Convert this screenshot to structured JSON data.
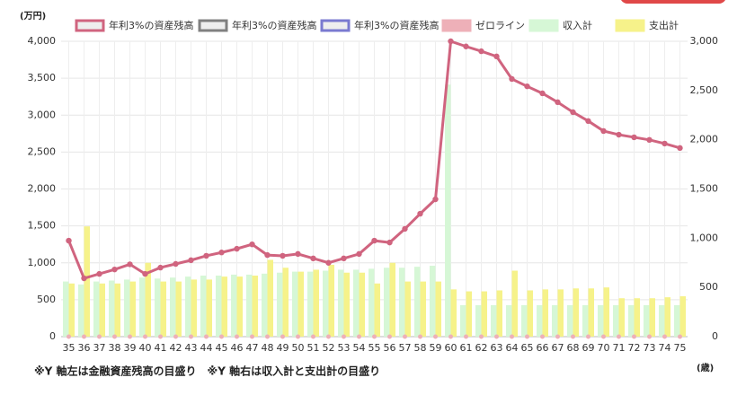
{
  "chart_data": {
    "type": "combo",
    "y_unit": "(万円)",
    "x_unit": "(歳)",
    "note": "※Y 軸左は金融資産残高の目盛り　※Y 軸右は収入計と支出計の目盛り",
    "categories": [
      "35",
      "36",
      "37",
      "38",
      "39",
      "40",
      "41",
      "42",
      "43",
      "44",
      "45",
      "46",
      "47",
      "48",
      "49",
      "50",
      "51",
      "52",
      "53",
      "54",
      "55",
      "56",
      "57",
      "58",
      "59",
      "60",
      "61",
      "62",
      "63",
      "64",
      "65",
      "66",
      "67",
      "68",
      "69",
      "70",
      "71",
      "72",
      "73",
      "74",
      "75"
    ],
    "ylim": [
      0,
      4000
    ],
    "yticks": [
      0,
      500,
      {
        "value": 1000,
        "label": "1,000"
      },
      {
        "value": 1500,
        "label": "1,500"
      },
      {
        "value": 2000,
        "label": "2,000"
      },
      {
        "value": 2500,
        "label": "2,500"
      },
      {
        "value": 3000,
        "label": "3,000"
      },
      {
        "value": 3500,
        "label": "3,500"
      },
      {
        "value": 4000,
        "label": "4,000"
      }
    ],
    "y2lim": [
      0,
      3000
    ],
    "y2ticks": [
      0,
      500,
      {
        "value": 1000,
        "label": "1,000"
      },
      {
        "value": 1500,
        "label": "1,500"
      },
      {
        "value": 2000,
        "label": "2,000"
      },
      {
        "value": 2500,
        "label": "2,500"
      },
      {
        "value": 3000,
        "label": "3,000"
      }
    ],
    "grid": true,
    "legend": "top",
    "series": [
      {
        "name": "年利3%の資産残高",
        "type": "line",
        "color": "#d0647f",
        "values": [
          1300,
          790,
          850,
          910,
          980,
          850,
          935,
          985,
          1035,
          1095,
          1140,
          1190,
          1250,
          1105,
          1095,
          1120,
          1060,
          1000,
          1060,
          1120,
          1300,
          1275,
          1460,
          1665,
          1860,
          4000,
          3930,
          3865,
          3795,
          3490,
          3390,
          3295,
          3175,
          3040,
          2920,
          2785,
          2735,
          2700,
          2665,
          2615,
          2555
        ]
      },
      {
        "name": "年利3%の資産残高",
        "type": "line",
        "color": "#808080",
        "values": [
          null,
          null,
          null,
          null,
          null,
          null,
          null,
          null,
          null,
          null,
          null,
          null,
          null,
          null,
          null,
          null,
          null,
          null,
          null,
          null,
          null,
          null,
          null,
          null,
          null,
          null,
          null,
          null,
          null,
          null,
          null,
          null,
          null,
          null,
          null,
          null,
          null,
          null,
          null,
          null,
          null
        ]
      },
      {
        "name": "年利3%の資産残高",
        "type": "line",
        "color": "#7a7ad0",
        "values": [
          null,
          null,
          null,
          null,
          null,
          null,
          null,
          null,
          null,
          null,
          null,
          null,
          null,
          null,
          null,
          null,
          null,
          null,
          null,
          null,
          null,
          null,
          null,
          null,
          null,
          null,
          null,
          null,
          null,
          null,
          null,
          null,
          null,
          null,
          null,
          null,
          null,
          null,
          null,
          null,
          null
        ]
      },
      {
        "name": "ゼロライン",
        "type": "dots",
        "color": "#eeb0b8",
        "values": [
          0,
          0,
          0,
          0,
          0,
          0,
          0,
          0,
          0,
          0,
          0,
          0,
          0,
          0,
          0,
          0,
          0,
          0,
          0,
          0,
          0,
          0,
          0,
          0,
          0,
          0,
          0,
          0,
          0,
          0,
          0,
          0,
          0,
          0,
          0,
          0,
          0,
          0,
          0,
          0,
          0
        ]
      },
      {
        "name": "収入計",
        "type": "bar",
        "axis": "y2",
        "color": "#d6f7d6",
        "values": [
          560,
          530,
          560,
          570,
          580,
          600,
          590,
          600,
          610,
          620,
          620,
          630,
          630,
          640,
          650,
          660,
          660,
          670,
          680,
          680,
          690,
          700,
          700,
          710,
          720,
          2560,
          320,
          320,
          320,
          320,
          320,
          320,
          320,
          320,
          320,
          320,
          320,
          320,
          320,
          320,
          320
        ]
      },
      {
        "name": "支出計",
        "type": "bar",
        "axis": "y2",
        "color": "#f6f28a",
        "values": [
          540,
          1120,
          540,
          540,
          560,
          750,
          560,
          560,
          580,
          580,
          610,
          610,
          620,
          780,
          700,
          660,
          680,
          730,
          650,
          650,
          540,
          750,
          560,
          560,
          560,
          480,
          460,
          460,
          470,
          670,
          470,
          480,
          480,
          490,
          490,
          500,
          390,
          390,
          390,
          400,
          410
        ]
      }
    ]
  }
}
